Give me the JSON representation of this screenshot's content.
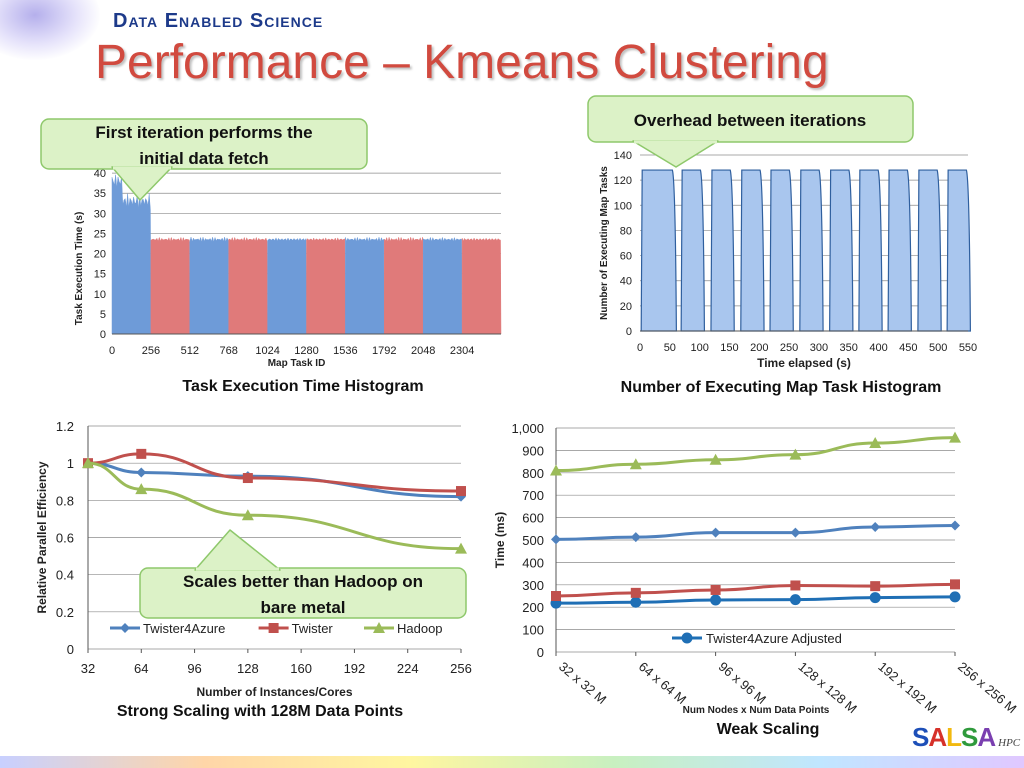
{
  "header": {
    "brand": "Data Enabled Science",
    "title": "Performance – Kmeans Clustering"
  },
  "callouts": {
    "first_iteration": "First iteration performs the initial data fetch",
    "overhead": "Overhead between iterations",
    "scales_better": "Scales better than Hadoop on bare metal"
  },
  "logo": {
    "letters": [
      "S",
      "A",
      "L",
      "S",
      "A"
    ],
    "colors": [
      "#1d4fb8",
      "#d6312a",
      "#f2b90f",
      "#2f9a3c",
      "#7a3fb0"
    ],
    "suffix": "HPC"
  },
  "colors": {
    "blue": "#6e9bd8",
    "red": "#e07a7a",
    "series_blue": "#4f81bd",
    "series_red": "#c0504d",
    "series_green": "#9bbb59",
    "series_adj": "#1f6fb5"
  },
  "chart_data": [
    {
      "type": "bar",
      "caption": "Task Execution Time Histogram",
      "xlabel": "Map Task ID",
      "ylabel": "Task Execution Time (s)",
      "x_ticks": [
        0,
        256,
        512,
        768,
        1024,
        1280,
        1536,
        1792,
        2048,
        2304
      ],
      "y_ticks": [
        0,
        5,
        10,
        15,
        20,
        25,
        30,
        35,
        40
      ],
      "xlim": [
        0,
        2560
      ],
      "ylim": [
        0,
        45
      ],
      "blocks": [
        {
          "start": 0,
          "end": 256,
          "value": 33,
          "color": "blue"
        },
        {
          "start": 256,
          "end": 512,
          "value": 23.5,
          "color": "red"
        },
        {
          "start": 512,
          "end": 768,
          "value": 23.5,
          "color": "blue"
        },
        {
          "start": 768,
          "end": 1024,
          "value": 23.5,
          "color": "red"
        },
        {
          "start": 1024,
          "end": 1280,
          "value": 23.5,
          "color": "blue"
        },
        {
          "start": 1280,
          "end": 1536,
          "value": 23.5,
          "color": "red"
        },
        {
          "start": 1536,
          "end": 1792,
          "value": 23.5,
          "color": "blue"
        },
        {
          "start": 1792,
          "end": 2048,
          "value": 23.5,
          "color": "red"
        },
        {
          "start": 2048,
          "end": 2304,
          "value": 23.5,
          "color": "blue"
        },
        {
          "start": 2304,
          "end": 2560,
          "value": 23.5,
          "color": "red"
        }
      ],
      "grid": true
    },
    {
      "type": "area",
      "caption": "Number of Executing Map Task Histogram",
      "xlabel": "Time elapsed (s)",
      "ylabel": "Number of Executing Map Tasks",
      "x_ticks": [
        0,
        50,
        100,
        150,
        200,
        250,
        300,
        350,
        400,
        450,
        500,
        550
      ],
      "y_ticks": [
        0,
        20,
        40,
        60,
        80,
        100,
        120,
        140
      ],
      "xlim": [
        0,
        550
      ],
      "ylim": [
        0,
        140
      ],
      "iterations": [
        [
          2,
          61
        ],
        [
          69,
          108
        ],
        [
          119,
          158
        ],
        [
          169,
          208
        ],
        [
          218,
          257
        ],
        [
          268,
          307
        ],
        [
          318,
          357
        ],
        [
          367,
          406
        ],
        [
          416,
          455
        ],
        [
          466,
          505
        ],
        [
          515,
          554
        ]
      ],
      "plateau": 128,
      "grid": true
    },
    {
      "type": "line",
      "caption": "Strong Scaling with 128M Data Points",
      "xlabel": "Number of Instances/Cores",
      "ylabel": "Relative Parallel Efficiency",
      "x_ticks": [
        32,
        64,
        96,
        128,
        160,
        192,
        224,
        256
      ],
      "y_ticks": [
        "0",
        "0.2",
        "0.4",
        "0.6",
        "0.8",
        "1",
        "1.2"
      ],
      "xlim": [
        32,
        256
      ],
      "ylim": [
        0,
        1.2
      ],
      "legend": "bottom",
      "series": [
        {
          "name": "Twister4Azure",
          "color": "series_blue",
          "marker": "diamond",
          "x": [
            32,
            64,
            128,
            256
          ],
          "values": [
            1.0,
            0.95,
            0.93,
            0.82
          ]
        },
        {
          "name": "Twister",
          "color": "series_red",
          "marker": "square",
          "x": [
            32,
            64,
            128,
            256
          ],
          "values": [
            1.0,
            1.05,
            0.92,
            0.85
          ]
        },
        {
          "name": "Hadoop",
          "color": "series_green",
          "marker": "triangle",
          "x": [
            32,
            64,
            128,
            256
          ],
          "values": [
            1.0,
            0.86,
            0.72,
            0.54
          ]
        }
      ],
      "grid": true
    },
    {
      "type": "line",
      "caption": "Weak Scaling",
      "xlabel": "Num Nodes x Num Data Points",
      "ylabel": "Time (ms)",
      "categories": [
        "32 x 32 M",
        "64 x 64 M",
        "96 x 96 M",
        "128 x 128 M",
        "192 x 192 M",
        "256 x 256 M"
      ],
      "y_ticks": [
        "0",
        "100",
        "200",
        "300",
        "400",
        "500",
        "600",
        "700",
        "800",
        "900",
        "1,000"
      ],
      "ylim": [
        0,
        1000
      ],
      "legend": "bottom",
      "series": [
        {
          "name": "Twister4Azure Adjusted",
          "color": "series_adj",
          "marker": "circle",
          "values": [
            218,
            222,
            232,
            234,
            243,
            246
          ],
          "legend": true
        },
        {
          "name": "",
          "color": "series_blue",
          "marker": "diamond",
          "values": [
            503,
            513,
            533,
            533,
            558,
            565
          ],
          "legend": false
        },
        {
          "name": "",
          "color": "series_red",
          "marker": "square",
          "values": [
            250,
            264,
            277,
            297,
            294,
            302
          ],
          "legend": false
        },
        {
          "name": "",
          "color": "series_green",
          "marker": "triangle",
          "values": [
            810,
            838,
            858,
            881,
            933,
            957
          ],
          "legend": false
        }
      ],
      "grid": true
    }
  ]
}
